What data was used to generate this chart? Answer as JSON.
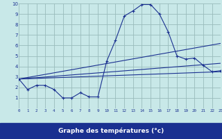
{
  "title": "Graphe des températures (°c)",
  "bg_color": "#c8e8e8",
  "grid_color": "#99bbbb",
  "line_color": "#1a3090",
  "xlabel_bg": "#1a3090",
  "xlabel_fg": "#ffffff",
  "xlim": [
    0,
    23
  ],
  "ylim": [
    0,
    10
  ],
  "xticks": [
    0,
    1,
    2,
    3,
    4,
    5,
    6,
    7,
    8,
    9,
    10,
    11,
    12,
    13,
    14,
    15,
    16,
    17,
    18,
    19,
    20,
    21,
    22,
    23
  ],
  "yticks": [
    1,
    2,
    3,
    4,
    5,
    6,
    7,
    8,
    9,
    10
  ],
  "line1_x": [
    0,
    1,
    2,
    3,
    4,
    5,
    6,
    7,
    8,
    9,
    10,
    11,
    12,
    13,
    14,
    15,
    16,
    17,
    18,
    19,
    20,
    21,
    22,
    23
  ],
  "line1_y": [
    2.8,
    1.8,
    2.2,
    2.2,
    1.8,
    1.0,
    1.0,
    1.5,
    1.1,
    1.1,
    4.5,
    6.5,
    8.8,
    9.3,
    9.9,
    9.9,
    9.0,
    7.3,
    5.0,
    4.7,
    4.8,
    4.1,
    3.5,
    3.6
  ],
  "line2_x": [
    0,
    23
  ],
  "line2_y": [
    2.8,
    3.5
  ],
  "line3_x": [
    0,
    23
  ],
  "line3_y": [
    2.8,
    4.3
  ],
  "line4_x": [
    0,
    23
  ],
  "line4_y": [
    2.8,
    6.2
  ]
}
